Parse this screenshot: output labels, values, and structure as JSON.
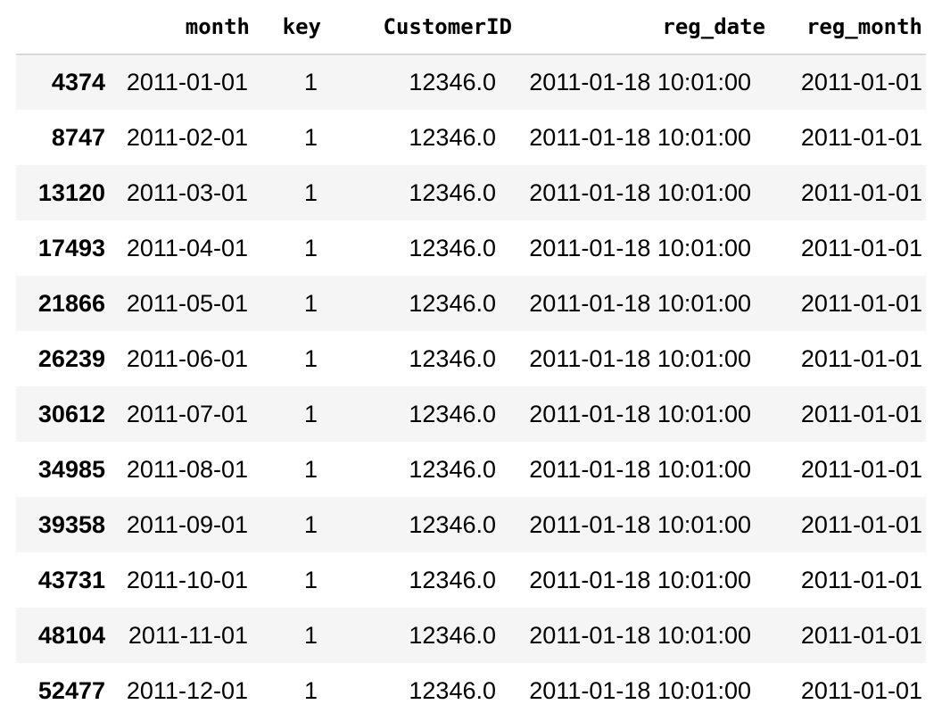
{
  "table": {
    "columns": {
      "index": "",
      "month": "month",
      "key": "key",
      "customer_id": "CustomerID",
      "reg_date": "reg_date",
      "reg_month": "reg_month"
    },
    "rows": [
      {
        "index": "4374",
        "month": "2011-01-01",
        "key": "1",
        "customer_id": "12346.0",
        "reg_date": "2011-01-18 10:01:00",
        "reg_month": "2011-01-01"
      },
      {
        "index": "8747",
        "month": "2011-02-01",
        "key": "1",
        "customer_id": "12346.0",
        "reg_date": "2011-01-18 10:01:00",
        "reg_month": "2011-01-01"
      },
      {
        "index": "13120",
        "month": "2011-03-01",
        "key": "1",
        "customer_id": "12346.0",
        "reg_date": "2011-01-18 10:01:00",
        "reg_month": "2011-01-01"
      },
      {
        "index": "17493",
        "month": "2011-04-01",
        "key": "1",
        "customer_id": "12346.0",
        "reg_date": "2011-01-18 10:01:00",
        "reg_month": "2011-01-01"
      },
      {
        "index": "21866",
        "month": "2011-05-01",
        "key": "1",
        "customer_id": "12346.0",
        "reg_date": "2011-01-18 10:01:00",
        "reg_month": "2011-01-01"
      },
      {
        "index": "26239",
        "month": "2011-06-01",
        "key": "1",
        "customer_id": "12346.0",
        "reg_date": "2011-01-18 10:01:00",
        "reg_month": "2011-01-01"
      },
      {
        "index": "30612",
        "month": "2011-07-01",
        "key": "1",
        "customer_id": "12346.0",
        "reg_date": "2011-01-18 10:01:00",
        "reg_month": "2011-01-01"
      },
      {
        "index": "34985",
        "month": "2011-08-01",
        "key": "1",
        "customer_id": "12346.0",
        "reg_date": "2011-01-18 10:01:00",
        "reg_month": "2011-01-01"
      },
      {
        "index": "39358",
        "month": "2011-09-01",
        "key": "1",
        "customer_id": "12346.0",
        "reg_date": "2011-01-18 10:01:00",
        "reg_month": "2011-01-01"
      },
      {
        "index": "43731",
        "month": "2011-10-01",
        "key": "1",
        "customer_id": "12346.0",
        "reg_date": "2011-01-18 10:01:00",
        "reg_month": "2011-01-01"
      },
      {
        "index": "48104",
        "month": "2011-11-01",
        "key": "1",
        "customer_id": "12346.0",
        "reg_date": "2011-01-18 10:01:00",
        "reg_month": "2011-01-01"
      },
      {
        "index": "52477",
        "month": "2011-12-01",
        "key": "1",
        "customer_id": "12346.0",
        "reg_date": "2011-01-18 10:01:00",
        "reg_month": "2011-01-01"
      }
    ]
  }
}
